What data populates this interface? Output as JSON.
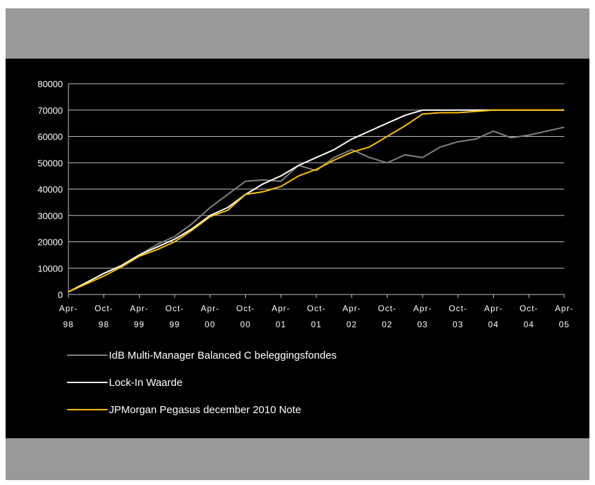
{
  "chart_data": {
    "type": "line",
    "title": "",
    "xlabel": "",
    "ylabel": "",
    "ylim": [
      0,
      80000
    ],
    "y_ticks": [
      "0",
      "10000",
      "20000",
      "30000",
      "40000",
      "50000",
      "60000",
      "70000",
      "80000"
    ],
    "x_ticks": [
      [
        "Apr-",
        "98"
      ],
      [
        "Oct-",
        "98"
      ],
      [
        "Apr-",
        "99"
      ],
      [
        "Oct-",
        "99"
      ],
      [
        "Apr-",
        "00"
      ],
      [
        "Oct-",
        "00"
      ],
      [
        "Apr-",
        "01"
      ],
      [
        "Oct-",
        "01"
      ],
      [
        "Apr-",
        "02"
      ],
      [
        "Oct-",
        "02"
      ],
      [
        "Apr-",
        "03"
      ],
      [
        "Oct-",
        "03"
      ],
      [
        "Apr-",
        "04"
      ],
      [
        "Oct-",
        "04"
      ],
      [
        "Apr-",
        "05"
      ]
    ],
    "x": [
      "Apr-98",
      "Jul-98",
      "Oct-98",
      "Jan-99",
      "Apr-99",
      "Jul-99",
      "Oct-99",
      "Jan-00",
      "Apr-00",
      "Jul-00",
      "Oct-00",
      "Jan-01",
      "Apr-01",
      "Jul-01",
      "Oct-01",
      "Jan-02",
      "Apr-02",
      "Jul-02",
      "Oct-02",
      "Jan-03",
      "Apr-03",
      "Jul-03",
      "Oct-03",
      "Jan-04",
      "Apr-04",
      "Jul-04",
      "Oct-04",
      "Jan-05",
      "Apr-05"
    ],
    "grid": true,
    "legend_position": "bottom",
    "series": [
      {
        "name": "IdB Multi-Manager Balanced C beleggingsfondes",
        "color": "#808080",
        "values": [
          1000,
          4500,
          8000,
          11000,
          15000,
          19000,
          22000,
          27000,
          33000,
          38000,
          43000,
          43500,
          43000,
          49000,
          47000,
          52000,
          55000,
          52000,
          50000,
          53000,
          52000,
          56000,
          58000,
          59000,
          62000,
          59500,
          60500,
          62000,
          63500
        ]
      },
      {
        "name": "Lock-In Waarde",
        "color": "#ffffff",
        "values": [
          1000,
          4500,
          8000,
          11000,
          15000,
          18000,
          21000,
          25000,
          30000,
          33000,
          38000,
          42000,
          45000,
          49000,
          52000,
          55000,
          59000,
          62000,
          65000,
          68000,
          70000,
          70000,
          70000,
          70000,
          70000,
          70000,
          70000,
          70000,
          70000
        ]
      },
      {
        "name": "JPMorgan Pegasus december 2010 Note",
        "color": "#ffc000",
        "values": [
          1000,
          4000,
          7000,
          10500,
          14500,
          17000,
          20000,
          24500,
          29500,
          32000,
          38000,
          39000,
          41000,
          45000,
          47500,
          51000,
          54000,
          56000,
          60000,
          64000,
          68500,
          69000,
          69000,
          69500,
          70000,
          70000,
          70000,
          70000,
          70000
        ]
      }
    ]
  }
}
